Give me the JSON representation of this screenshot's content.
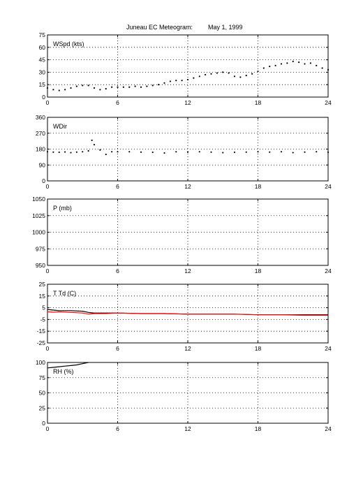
{
  "figure": {
    "title_station": "Juneau EC Meteogram:",
    "title_date": "May   1, 1999"
  },
  "chart_data": [
    {
      "type": "scatter",
      "label": "WSpd (kts)",
      "xlim": [
        0,
        24
      ],
      "ylim": [
        0,
        75
      ],
      "xticks": [
        0,
        6,
        12,
        18,
        24
      ],
      "yticks": [
        0,
        15,
        30,
        45,
        60,
        75
      ],
      "grid": true,
      "series": [
        {
          "color": "#000000",
          "x": [
            0,
            0.5,
            1,
            1.5,
            2,
            2.5,
            3,
            3.5,
            4,
            4.5,
            5,
            5.5,
            6,
            6.5,
            7,
            7.5,
            8,
            8.5,
            9,
            9.5,
            10,
            10.5,
            11,
            11.5,
            12,
            12.5,
            13,
            13.5,
            14,
            14.5,
            15,
            15.5,
            16,
            16.5,
            17,
            17.5,
            18,
            18.5,
            19,
            19.5,
            20,
            20.5,
            21,
            21.5,
            22,
            22.5,
            23,
            23.5,
            24
          ],
          "y": [
            11,
            9,
            8,
            9,
            11,
            13,
            14,
            14,
            11,
            9,
            10,
            12,
            12,
            12,
            12,
            13,
            12,
            13,
            14,
            15,
            17,
            19,
            20,
            20,
            21,
            23,
            25,
            27,
            28,
            29,
            30,
            29,
            25,
            24,
            26,
            28,
            31,
            35,
            37,
            38,
            40,
            41,
            43,
            42,
            40,
            41,
            38,
            35,
            33
          ]
        }
      ]
    },
    {
      "type": "scatter",
      "label": "WDir",
      "xlim": [
        0,
        24
      ],
      "ylim": [
        0,
        360
      ],
      "xticks": [
        0,
        6,
        12,
        18,
        24
      ],
      "yticks": [
        0,
        90,
        180,
        270,
        360
      ],
      "grid": true,
      "series": [
        {
          "color": "#000000",
          "x": [
            0,
            0.5,
            1,
            1.5,
            2,
            2.5,
            3,
            3.5,
            3.8,
            4,
            4.5,
            5,
            5.5,
            6,
            7,
            8,
            9,
            10,
            11,
            12,
            13,
            14,
            15,
            16,
            17,
            18,
            19,
            20,
            21,
            22,
            23,
            24
          ],
          "y": [
            165,
            163,
            162,
            164,
            160,
            163,
            165,
            170,
            230,
            205,
            175,
            150,
            165,
            165,
            165,
            163,
            162,
            158,
            165,
            163,
            165,
            163,
            160,
            162,
            163,
            165,
            163,
            165,
            160,
            163,
            165,
            162
          ]
        }
      ]
    },
    {
      "type": "line",
      "label": "P (mb)",
      "xlim": [
        0,
        24
      ],
      "ylim": [
        950,
        1050
      ],
      "xticks": [
        0,
        6,
        12,
        18,
        24
      ],
      "yticks": [
        950,
        975,
        1000,
        1025,
        1050
      ],
      "grid": true,
      "series": []
    },
    {
      "type": "line",
      "label": "T Td (C)",
      "xlim": [
        0,
        24
      ],
      "ylim": [
        -25,
        25
      ],
      "xticks": [
        0,
        6,
        12,
        18,
        24
      ],
      "yticks": [
        -25,
        -15,
        -5,
        5,
        15,
        25
      ],
      "grid": true,
      "series": [
        {
          "color": "#000000",
          "x": [
            0,
            0.5,
            1,
            2,
            3,
            3.5,
            4,
            5,
            6,
            8,
            10,
            12,
            14,
            16,
            18,
            20,
            22,
            24
          ],
          "y": [
            3.5,
            3,
            2.5,
            2.5,
            2,
            1,
            0.5,
            0.5,
            0.5,
            0,
            0,
            -0.5,
            -0.5,
            -0.5,
            -1,
            -1,
            -1,
            -1
          ]
        },
        {
          "color": "#ff0000",
          "x": [
            0,
            0.5,
            1,
            2,
            3,
            3.5,
            4,
            5,
            6,
            8,
            10,
            12,
            14,
            16,
            18,
            20,
            22,
            24
          ],
          "y": [
            1.5,
            1.2,
            1.5,
            1,
            0.5,
            -0.5,
            0,
            0,
            0.5,
            0,
            0,
            -0.5,
            -0.5,
            -0.5,
            -1,
            -1,
            -1.5,
            -1.5
          ]
        }
      ]
    },
    {
      "type": "line",
      "label": "RH (%)",
      "xlim": [
        0,
        24
      ],
      "ylim": [
        0,
        100
      ],
      "xticks": [
        0,
        6,
        12,
        18,
        24
      ],
      "yticks": [
        0,
        25,
        50,
        75,
        100
      ],
      "grid": true,
      "series": [
        {
          "color": "#000000",
          "x": [
            0,
            0.5,
            1,
            1.5,
            2,
            2.5,
            3,
            3.5
          ],
          "y": [
            91,
            92,
            93,
            94,
            95,
            96,
            98,
            100
          ]
        }
      ]
    }
  ]
}
